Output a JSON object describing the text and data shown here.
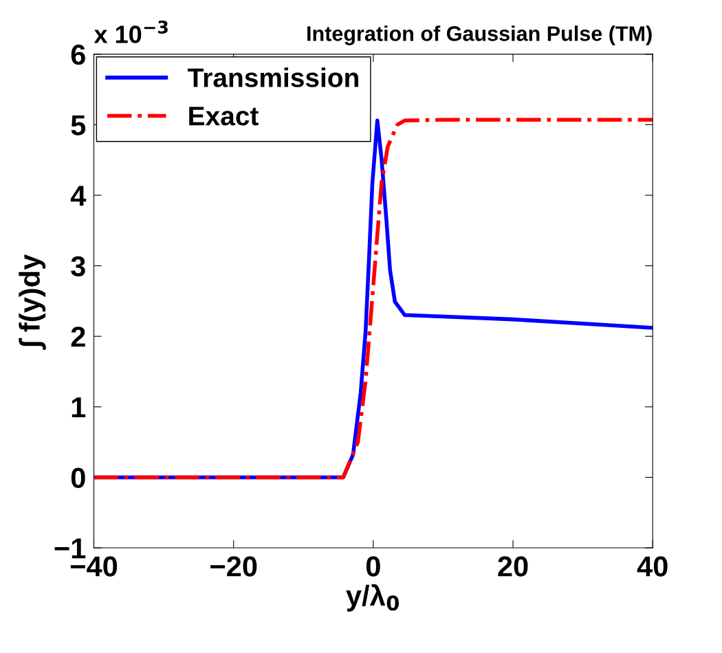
{
  "chart_data": {
    "type": "line",
    "title": "Integration of Gaussian Pulse (TM)",
    "annotations": [
      "x 10$^{−3}$"
    ],
    "xlabel": "y/λ$_{0}$",
    "ylabel": "∫ f(y)dy",
    "xlim": [
      -40,
      40
    ],
    "ylim": [
      -1,
      6
    ],
    "xticks": [
      {
        "value": -40,
        "label": "−40"
      },
      {
        "value": -20,
        "label": "−20"
      },
      0,
      20,
      40
    ],
    "yticks": [
      {
        "value": -1,
        "label": "−1"
      },
      0,
      1,
      2,
      3,
      4,
      5,
      6
    ],
    "grid": false,
    "legend": "top left",
    "marker": "none",
    "series": [
      {
        "name": "Transmission",
        "color": "#0000ff",
        "line_style": "solid",
        "x": [
          -40,
          -20,
          -4.3,
          -2.9,
          -1.8,
          -1.1,
          -0.6,
          -0.13,
          0.58,
          1.18,
          1.88,
          2.4,
          3.1,
          4.5,
          5,
          10,
          20,
          30,
          40
        ],
        "values": [
          0,
          0,
          0,
          0.32,
          1.2,
          2.07,
          3.12,
          4.17,
          5.06,
          4.52,
          3.65,
          2.94,
          2.49,
          2.3,
          2.3,
          2.28,
          2.24,
          2.18,
          2.12
        ]
      },
      {
        "name": "Exact",
        "color": "#ff0000",
        "line_style": "dashdot",
        "x": [
          -40,
          -20,
          -4.3,
          -2.2,
          -1.1,
          -0.24,
          0.47,
          1.18,
          2.07,
          3.45,
          4.5,
          10,
          20,
          30,
          40
        ],
        "values": [
          0,
          0,
          0,
          0.5,
          1.37,
          2.42,
          3.3,
          4.17,
          4.69,
          5.0,
          5.06,
          5.07,
          5.07,
          5.07,
          5.07
        ]
      }
    ]
  }
}
